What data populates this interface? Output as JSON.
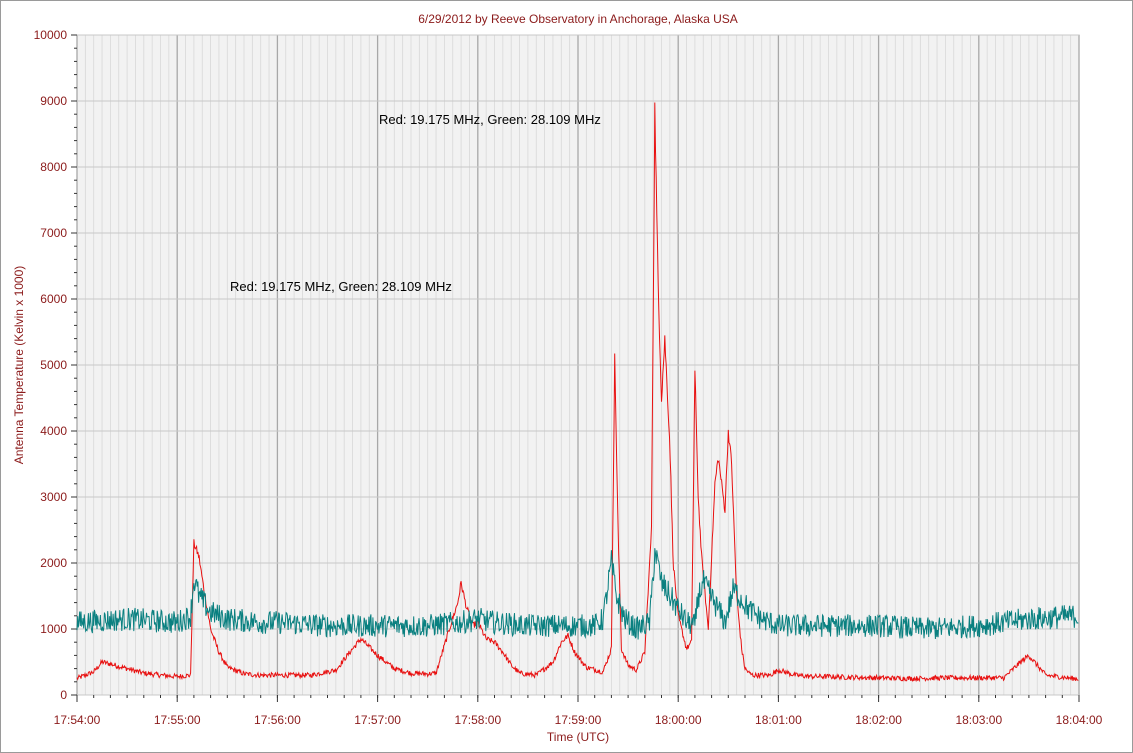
{
  "chart_data": {
    "type": "line",
    "title": "6/29/2012  by  Reeve Observatory  in  Anchorage, Alaska  USA",
    "xlabel": "Time (UTC)",
    "ylabel": "Antenna Temperature (Kelvin x 1000)",
    "xlim": [
      "17:54:00",
      "18:04:00"
    ],
    "ylim": [
      0,
      10000
    ],
    "xticks": [
      "17:54:00",
      "17:55:00",
      "17:56:00",
      "17:57:00",
      "17:58:00",
      "17:59:00",
      "18:00:00",
      "18:01:00",
      "18:02:00",
      "18:03:00",
      "18:04:00"
    ],
    "yticks": [
      "0",
      "1000",
      "2000",
      "3000",
      "4000",
      "5000",
      "6000",
      "7000",
      "8000",
      "9000",
      "10000"
    ],
    "grid": true,
    "annotations": [
      "Red: 19.175 MHz, Green: 28.109 MHz",
      "Red: 19.175 MHz, Green: 28.109 MHz"
    ],
    "colors": {
      "red": "#e81010",
      "green": "#0a8080",
      "text": "#8b1a1a",
      "grid": "#c8c8c8",
      "plot_bg": "#f2f2f2"
    },
    "series": [
      {
        "color": "red",
        "x": [
          "17:54:00",
          "17:54:10",
          "17:54:15",
          "17:54:20",
          "17:54:30",
          "17:54:40",
          "17:54:50",
          "17:55:00",
          "17:55:08",
          "17:55:10",
          "17:55:13",
          "17:55:16",
          "17:55:20",
          "17:55:25",
          "17:55:30",
          "17:55:40",
          "17:55:50",
          "17:56:00",
          "17:56:20",
          "17:56:35",
          "17:56:45",
          "17:56:50",
          "17:57:00",
          "17:57:10",
          "17:57:20",
          "17:57:30",
          "17:57:35",
          "17:57:43",
          "17:57:48",
          "17:57:50",
          "17:57:53",
          "17:57:57",
          "17:58:00",
          "17:58:05",
          "17:58:10",
          "17:58:15",
          "17:58:20",
          "17:58:25",
          "17:58:35",
          "17:58:45",
          "17:58:50",
          "17:58:54",
          "17:58:58",
          "17:59:05",
          "17:59:15",
          "17:59:20",
          "17:59:22",
          "17:59:24",
          "17:59:26",
          "17:59:30",
          "17:59:35",
          "17:59:40",
          "17:59:44",
          "17:59:46",
          "17:59:47",
          "17:59:48",
          "17:59:50",
          "17:59:52",
          "17:59:55",
          "17:59:57",
          "18:00:00",
          "18:00:05",
          "18:00:08",
          "18:00:10",
          "18:00:12",
          "18:00:14",
          "18:00:18",
          "18:00:22",
          "18:00:24",
          "18:00:28",
          "18:00:30",
          "18:00:32",
          "18:00:35",
          "18:00:38",
          "18:00:40",
          "18:00:43",
          "18:00:45",
          "18:00:50",
          "18:00:55",
          "18:01:00",
          "18:01:10",
          "18:01:20",
          "18:01:30",
          "18:01:40",
          "18:02:00",
          "18:02:20",
          "18:02:40",
          "18:03:00",
          "18:03:15",
          "18:03:25",
          "18:03:30",
          "18:03:40",
          "18:04:00"
        ],
        "y": [
          250,
          350,
          500,
          470,
          400,
          330,
          300,
          280,
          300,
          2300,
          2100,
          1600,
          1000,
          650,
          420,
          320,
          300,
          300,
          300,
          380,
          700,
          850,
          600,
          400,
          330,
          320,
          330,
          1000,
          1400,
          1700,
          1350,
          1050,
          1100,
          850,
          800,
          650,
          450,
          330,
          300,
          500,
          800,
          900,
          650,
          420,
          350,
          700,
          5100,
          2500,
          700,
          450,
          380,
          650,
          2500,
          8900,
          7500,
          6200,
          4500,
          5400,
          3800,
          2000,
          1200,
          700,
          800,
          4900,
          3000,
          2100,
          1000,
          3200,
          3600,
          2800,
          4000,
          3500,
          1500,
          700,
          400,
          320,
          300,
          300,
          300,
          380,
          300,
          280,
          280,
          270,
          260,
          250,
          260,
          260,
          260,
          500,
          600,
          300,
          240
        ]
      },
      {
        "color": "green",
        "x": [
          "17:54:00",
          "17:54:30",
          "17:55:00",
          "17:55:08",
          "17:55:10",
          "17:55:13",
          "17:55:20",
          "17:55:30",
          "17:55:50",
          "17:56:00",
          "17:56:30",
          "17:57:00",
          "17:57:30",
          "17:57:50",
          "17:58:00",
          "17:58:10",
          "17:58:30",
          "17:59:00",
          "17:59:10",
          "17:59:15",
          "17:59:20",
          "17:59:23",
          "17:59:28",
          "17:59:35",
          "17:59:43",
          "17:59:46",
          "17:59:50",
          "17:59:55",
          "18:00:00",
          "18:00:05",
          "18:00:10",
          "18:00:12",
          "18:00:15",
          "18:00:25",
          "18:00:28",
          "18:00:33",
          "18:00:38",
          "18:00:42",
          "18:00:50",
          "18:01:00",
          "18:01:30",
          "18:02:00",
          "18:02:30",
          "18:03:00",
          "18:03:30",
          "18:04:00"
        ],
        "y": [
          1100,
          1150,
          1100,
          1200,
          1750,
          1500,
          1250,
          1150,
          1100,
          1100,
          1050,
          1050,
          1050,
          1100,
          1150,
          1100,
          1050,
          1050,
          1050,
          1150,
          2000,
          1500,
          1150,
          1000,
          1100,
          2200,
          1700,
          1500,
          1300,
          1100,
          1050,
          1500,
          1700,
          1250,
          1100,
          1600,
          1450,
          1300,
          1150,
          1050,
          1050,
          1050,
          1000,
          1050,
          1150,
          1200
        ]
      }
    ]
  }
}
